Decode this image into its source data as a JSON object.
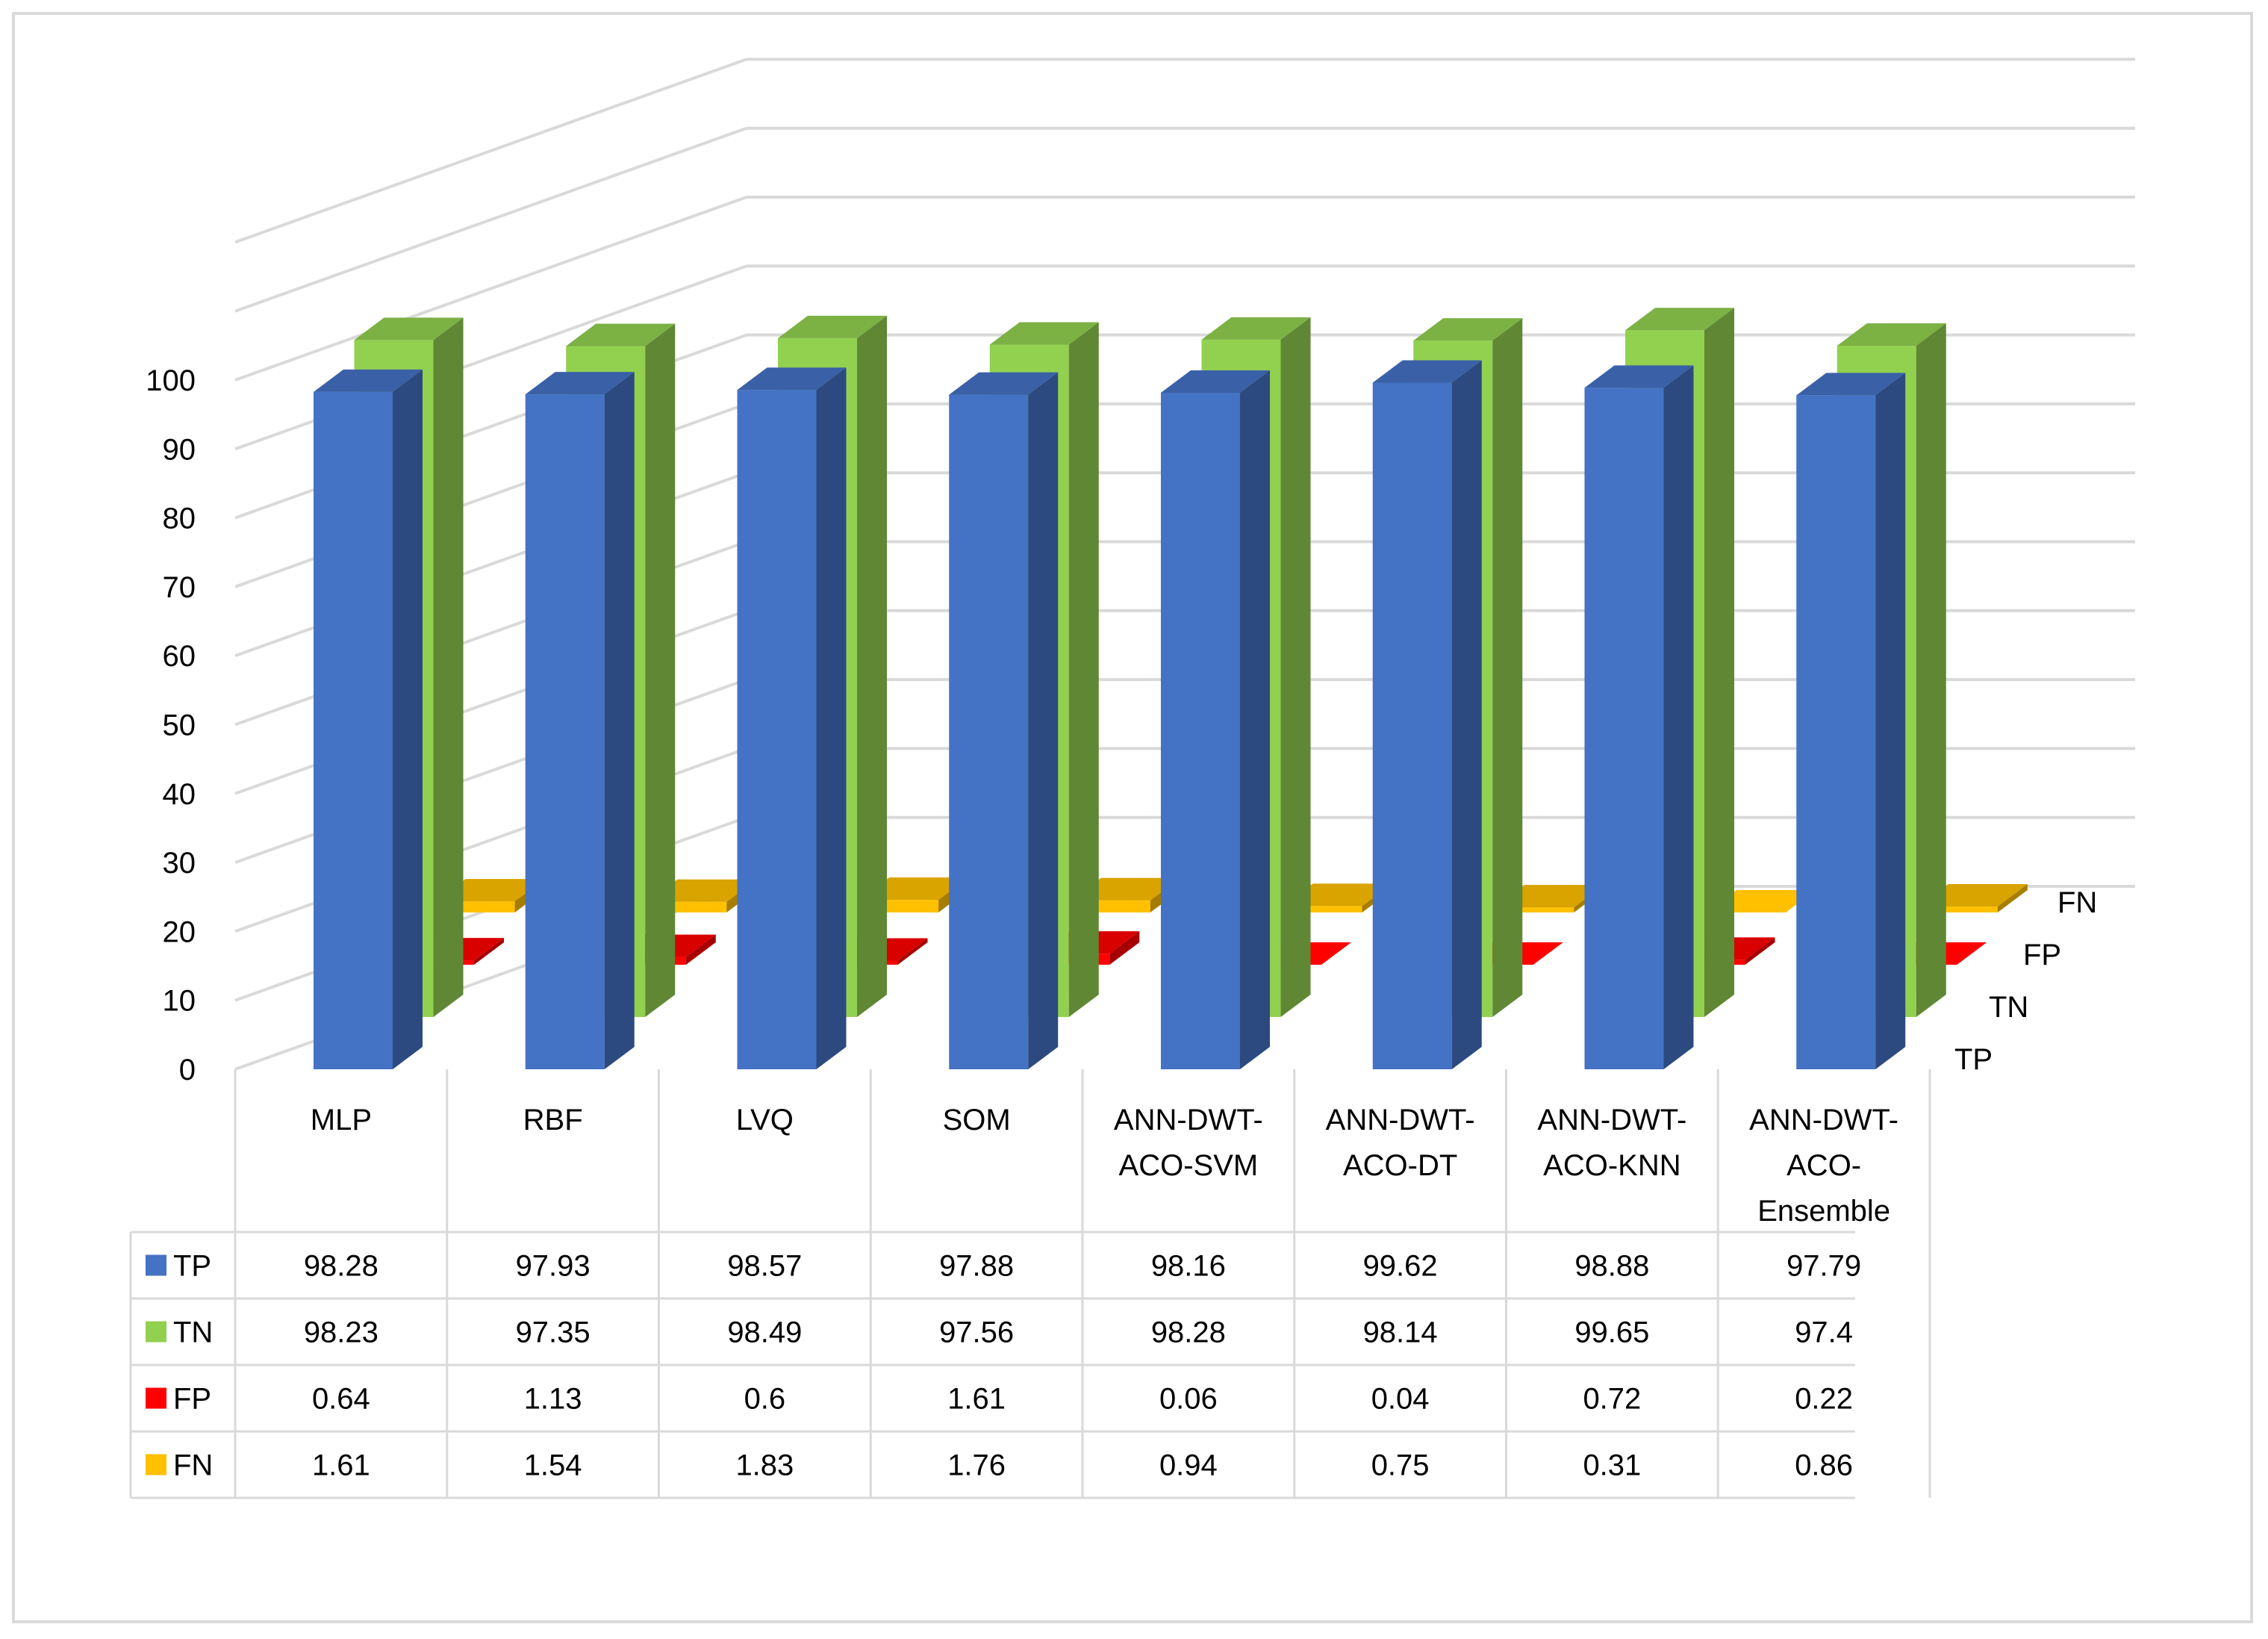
{
  "chart_data": {
    "type": "bar",
    "variant": "3d-clustered-column-with-data-table",
    "title": "",
    "xlabel": "",
    "ylabel": "",
    "ylim": [
      0,
      100
    ],
    "yticks": [
      "0",
      "10",
      "20",
      "30",
      "40",
      "50",
      "60",
      "70",
      "80",
      "90",
      "100"
    ],
    "grid": true,
    "legend": "data-table",
    "categories": [
      [
        "MLP"
      ],
      [
        "RBF"
      ],
      [
        "LVQ"
      ],
      [
        "SOM"
      ],
      [
        "ANN-DWT-",
        "ACO-SVM"
      ],
      [
        "ANN-DWT-",
        "ACO-DT"
      ],
      [
        "ANN-DWT-",
        "ACO-KNN"
      ],
      [
        "ANN-DWT-",
        "ACO-",
        "Ensemble"
      ]
    ],
    "series": [
      {
        "name": "TP",
        "color": "#4472C4",
        "values": [
          98.28,
          97.93,
          98.57,
          97.88,
          98.16,
          99.62,
          98.88,
          97.79
        ]
      },
      {
        "name": "TN",
        "color": "#92D050",
        "values": [
          98.23,
          97.35,
          98.49,
          97.56,
          98.28,
          98.14,
          99.65,
          97.4
        ]
      },
      {
        "name": "FP",
        "color": "#FF0000",
        "values": [
          0.64,
          1.13,
          0.6,
          1.61,
          0.06,
          0.04,
          0.72,
          0.22
        ]
      },
      {
        "name": "FN",
        "color": "#FFC000",
        "values": [
          1.61,
          1.54,
          1.83,
          1.76,
          0.94,
          0.75,
          0.31,
          0.86
        ]
      }
    ],
    "table_values": [
      [
        "98.28",
        "97.93",
        "98.57",
        "97.88",
        "98.16",
        "99.62",
        "98.88",
        "97.79"
      ],
      [
        "98.23",
        "97.35",
        "98.49",
        "97.56",
        "98.28",
        "98.14",
        "99.65",
        "97.4"
      ],
      [
        "0.64",
        "1.13",
        "0.6",
        "1.61",
        "0.06",
        "0.04",
        "0.72",
        "0.22"
      ],
      [
        "1.61",
        "1.54",
        "1.83",
        "1.76",
        "0.94",
        "0.75",
        "0.31",
        "0.86"
      ]
    ]
  }
}
